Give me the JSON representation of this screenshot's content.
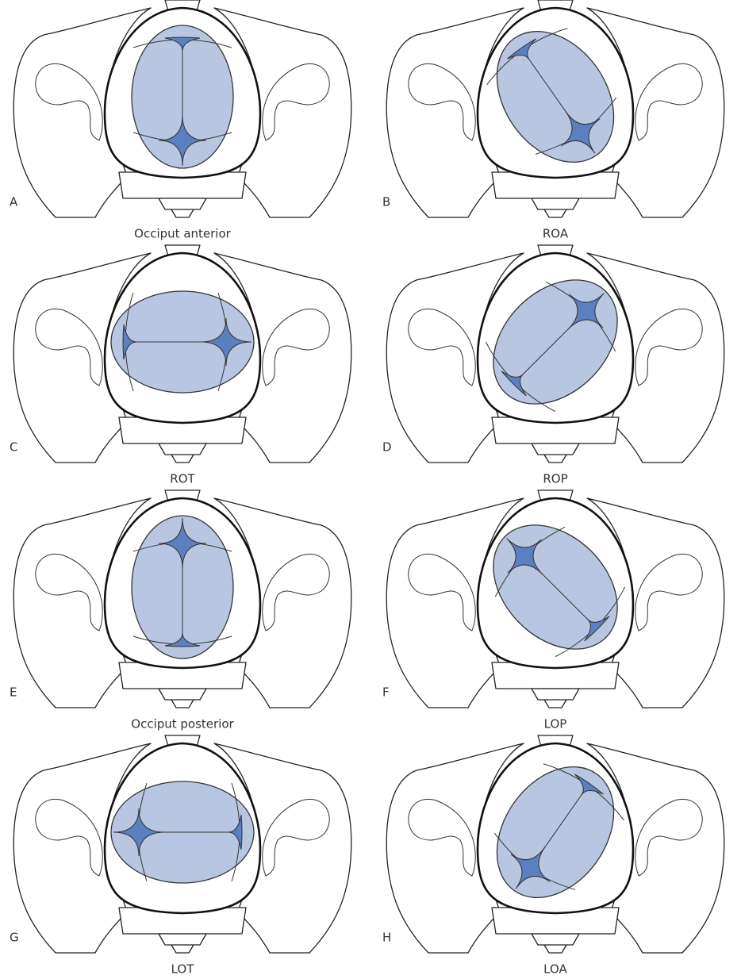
{
  "panels": [
    {
      "letter": "A",
      "caption": "Occiput anterior"
    },
    {
      "letter": "B",
      "caption": "ROA"
    },
    {
      "letter": "C",
      "caption": "ROT"
    },
    {
      "letter": "D",
      "caption": "ROP"
    },
    {
      "letter": "E",
      "caption": "Occiput posterior"
    },
    {
      "letter": "F",
      "caption": "LOP"
    },
    {
      "letter": "G",
      "caption": "LOT"
    },
    {
      "letter": "H",
      "caption": "LOA"
    }
  ]
}
